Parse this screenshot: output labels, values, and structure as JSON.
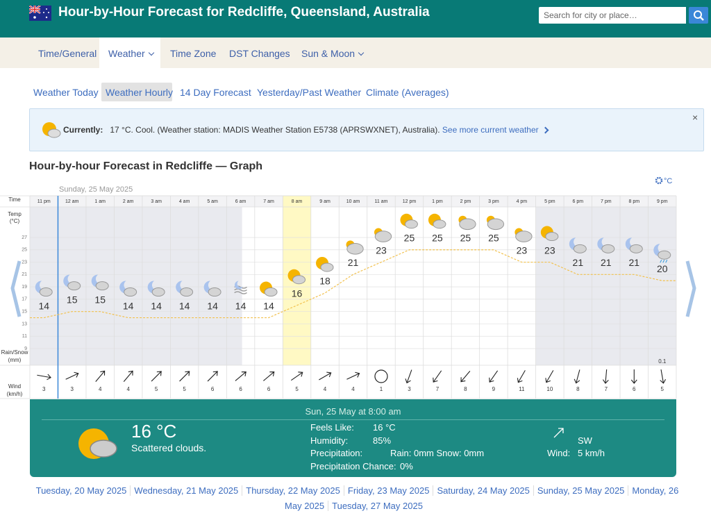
{
  "header": {
    "title": "Hour-by-Hour Forecast for Redcliffe, Queensland, Australia",
    "search_placeholder": "Search for city or place…"
  },
  "nav": [
    "Time/General",
    "Weather",
    "Time Zone",
    "DST Changes",
    "Sun & Moon"
  ],
  "subnav": [
    "Weather Today",
    "Weather Hourly",
    "14 Day Forecast",
    "Yesterday/Past Weather",
    "Climate (Averages)"
  ],
  "current": {
    "label": "Currently:",
    "text": "17 °C. Cool. (Weather station: MADIS Weather Station E5738 (APRSWXNET), Australia).",
    "link": "See more current weather",
    "close": "×"
  },
  "graph": {
    "title": "Hour-by-hour Forecast in Redcliffe — Graph",
    "unit": "°C",
    "date": "Sunday, 25 May 2025",
    "row_labels": {
      "time": "Time",
      "temp": [
        "Temp",
        "(°C)"
      ],
      "rain": [
        "Rain/Snow",
        "(mm)"
      ],
      "wind": [
        "Wind",
        "(km/h)"
      ]
    },
    "yticks": [
      27,
      25,
      23,
      21,
      19,
      17,
      15,
      13,
      11,
      9
    ],
    "hours": [
      "11 pm",
      "12 am",
      "1 am",
      "2 am",
      "3 am",
      "4 am",
      "5 am",
      "6 am",
      "7 am",
      "8 am",
      "9 am",
      "10 am",
      "11 am",
      "12 pm",
      "1 pm",
      "2 pm",
      "3 pm",
      "4 pm",
      "5 pm",
      "6 pm",
      "7 pm",
      "8 pm",
      "9 pm"
    ],
    "temps": [
      14,
      15,
      15,
      14,
      14,
      14,
      14,
      14,
      14,
      16,
      18,
      21,
      23,
      25,
      25,
      25,
      25,
      23,
      23,
      21,
      21,
      21,
      20
    ],
    "rain": [
      null,
      null,
      null,
      null,
      null,
      null,
      null,
      null,
      null,
      null,
      null,
      null,
      null,
      null,
      null,
      null,
      null,
      null,
      null,
      null,
      null,
      null,
      0.1
    ],
    "wind": [
      3,
      3,
      4,
      4,
      5,
      5,
      6,
      6,
      6,
      5,
      4,
      4,
      1,
      3,
      7,
      8,
      9,
      11,
      10,
      8,
      7,
      6,
      5
    ]
  },
  "details": {
    "heading": "Sun, 25 May at 8:00 am",
    "temp": "16 °C",
    "desc": "Scattered clouds.",
    "rows": [
      [
        "Feels Like:",
        "16 °C"
      ],
      [
        "Humidity:",
        "85%"
      ],
      [
        "Precipitation:",
        "Rain: 0mm Snow: 0mm"
      ],
      [
        "Precipitation Chance:",
        "0%"
      ]
    ],
    "wind_dir": "SW",
    "wind_label": "Wind:",
    "wind_speed": "5 km/h"
  },
  "days": [
    "Tuesday, 20 May 2025",
    "Wednesday, 21 May 2025",
    "Thursday, 22 May 2025",
    "Friday, 23 May 2025",
    "Saturday, 24 May 2025",
    "Sunday, 25 May 2025",
    "Monday, 26 May 2025",
    "Tuesday, 27 May 2025"
  ]
}
